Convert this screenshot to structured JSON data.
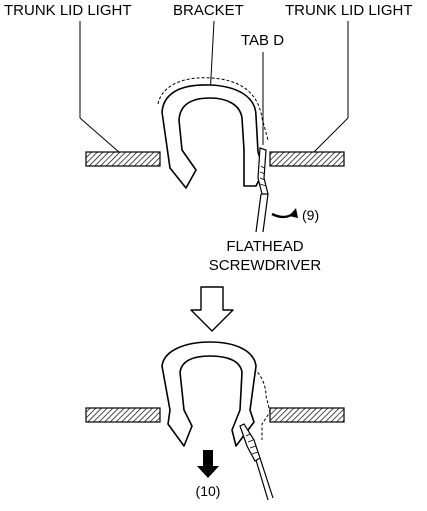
{
  "labels": {
    "trunk_lid_light_left": "TRUNK LID LIGHT",
    "bracket": "BRACKET",
    "trunk_lid_light_right": "TRUNK LID LIGHT",
    "tab_d": "TAB D",
    "step_9": "(9)",
    "screwdriver_line1": "FLATHEAD",
    "screwdriver_line2": "SCREWDRIVER",
    "step_10": "(10)"
  },
  "colors": {
    "line": "#000000",
    "hatch": "#000000",
    "background": "#ffffff"
  }
}
